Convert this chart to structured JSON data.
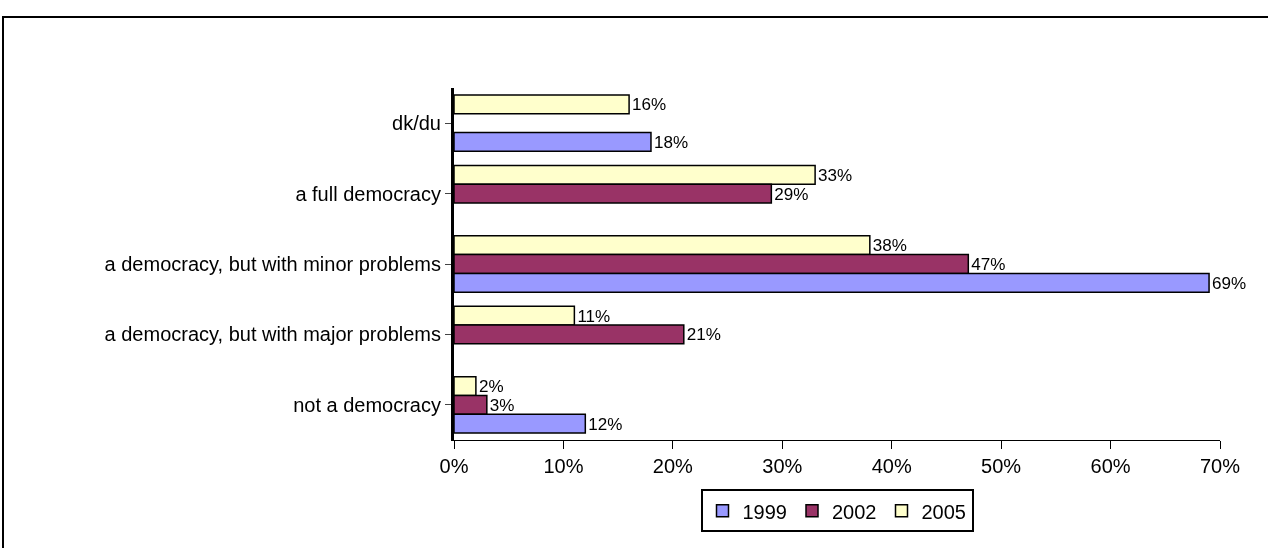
{
  "chart_data": {
    "type": "bar",
    "orientation": "horizontal",
    "categories": [
      "dk/du",
      "a full democracy",
      "a democracy, but with minor problems",
      "a democracy, but with major problems",
      "not a democracy"
    ],
    "series": [
      {
        "name": "1999",
        "color": "#9999ff",
        "values": [
          18,
          null,
          69,
          null,
          12
        ],
        "value_labels": [
          "18%",
          null,
          "69%",
          null,
          "12%"
        ]
      },
      {
        "name": "2002",
        "color": "#993366",
        "values": [
          null,
          29,
          47,
          21,
          3
        ],
        "value_labels": [
          null,
          "29%",
          "47%",
          "21%",
          "3%"
        ]
      },
      {
        "name": "2005",
        "color": "#ffffcc",
        "values": [
          16,
          33,
          38,
          11,
          2
        ],
        "value_labels": [
          "16%",
          "33%",
          "38%",
          "11%",
          "2%"
        ]
      }
    ],
    "xlim": [
      0,
      70
    ],
    "xticks": [
      {
        "value": 0,
        "label": "0%"
      },
      {
        "value": 10,
        "label": "10%"
      },
      {
        "value": 20,
        "label": "20%"
      },
      {
        "value": 30,
        "label": "30%"
      },
      {
        "value": 40,
        "label": "40%"
      },
      {
        "value": 50,
        "label": "50%"
      },
      {
        "value": 60,
        "label": "60%"
      },
      {
        "value": 70,
        "label": "70%"
      }
    ],
    "grid": false,
    "legend": "bottom"
  }
}
